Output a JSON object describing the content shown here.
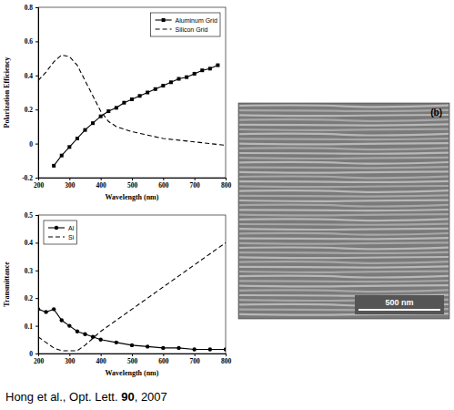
{
  "chart_data": [
    {
      "type": "line",
      "x_label": "Wavelength (nm)",
      "y_label": "Polarization Efficiency",
      "xlim": [
        200,
        800
      ],
      "xticks": [
        200,
        300,
        400,
        500,
        600,
        700,
        800
      ],
      "ylim": [
        -0.2,
        0.8
      ],
      "yticks": [
        -0.2,
        0,
        0.2,
        0.4,
        0.6,
        0.8
      ],
      "grid": false,
      "legend": "upper right",
      "series": [
        {
          "name": "Aluminum Grid",
          "color": "#000000",
          "marker": "square",
          "line_style": "solid",
          "x": [
            250,
            275,
            300,
            325,
            350,
            375,
            400,
            425,
            450,
            475,
            500,
            525,
            550,
            575,
            600,
            625,
            650,
            675,
            700,
            725,
            750,
            775
          ],
          "values": [
            -0.13,
            -0.07,
            -0.02,
            0.03,
            0.08,
            0.12,
            0.16,
            0.19,
            0.21,
            0.24,
            0.26,
            0.28,
            0.3,
            0.32,
            0.34,
            0.36,
            0.38,
            0.39,
            0.41,
            0.43,
            0.44,
            0.46
          ]
        },
        {
          "name": "Silicon Grid",
          "color": "#000000",
          "marker": "none",
          "line_style": "dashed",
          "x": [
            200,
            225,
            250,
            275,
            300,
            325,
            350,
            375,
            400,
            425,
            450,
            500,
            550,
            600,
            650,
            700,
            750,
            800
          ],
          "values": [
            0.37,
            0.42,
            0.48,
            0.52,
            0.51,
            0.46,
            0.37,
            0.28,
            0.19,
            0.13,
            0.1,
            0.07,
            0.05,
            0.03,
            0.02,
            0.01,
            0.0,
            -0.01
          ]
        }
      ]
    },
    {
      "type": "line",
      "x_label": "Wavelength (nm)",
      "y_label": "Transmittance",
      "xlim": [
        200,
        800
      ],
      "xticks": [
        200,
        300,
        400,
        500,
        600,
        700,
        800
      ],
      "ylim": [
        0,
        0.5
      ],
      "yticks": [
        0,
        0.1,
        0.2,
        0.3,
        0.4,
        0.5
      ],
      "grid": false,
      "legend": "upper left",
      "series": [
        {
          "name": "Al",
          "color": "#000000",
          "marker": "circle",
          "line_style": "solid",
          "x": [
            200,
            225,
            250,
            275,
            300,
            325,
            350,
            375,
            400,
            450,
            500,
            550,
            600,
            650,
            700,
            750,
            800
          ],
          "values": [
            0.16,
            0.15,
            0.16,
            0.12,
            0.1,
            0.08,
            0.07,
            0.06,
            0.05,
            0.04,
            0.03,
            0.025,
            0.02,
            0.02,
            0.015,
            0.015,
            0.015
          ]
        },
        {
          "name": "Si",
          "color": "#000000",
          "marker": "none",
          "line_style": "dashed",
          "x": [
            200,
            225,
            250,
            275,
            300,
            325,
            350,
            400,
            450,
            500,
            550,
            600,
            650,
            700,
            750,
            800
          ],
          "values": [
            0.06,
            0.04,
            0.02,
            0.01,
            0.01,
            0.01,
            0.03,
            0.08,
            0.12,
            0.16,
            0.2,
            0.24,
            0.28,
            0.32,
            0.36,
            0.4
          ]
        }
      ]
    }
  ],
  "image": {
    "panel_label": "(b)",
    "scale_bar_label": "500 nm"
  },
  "caption": {
    "authors": "Hong et al., Opt. Lett. ",
    "volume": "90",
    "year": ", 2007"
  }
}
